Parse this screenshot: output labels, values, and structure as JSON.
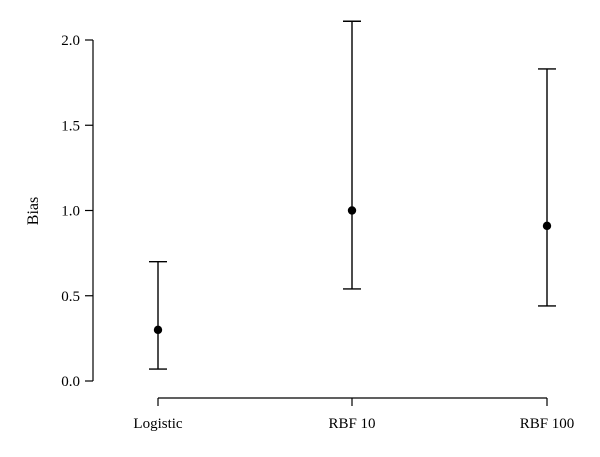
{
  "chart_data": {
    "type": "scatter",
    "title": "",
    "xlabel": "",
    "ylabel": "Bias",
    "categories": [
      "Logistic",
      "RBF 10",
      "RBF 100"
    ],
    "series": [
      {
        "values": [
          0.3,
          1.0,
          0.91
        ],
        "error_low": [
          0.07,
          0.54,
          0.44
        ],
        "error_high": [
          0.7,
          2.11,
          1.83
        ]
      }
    ],
    "ylim": [
      0.0,
      2.1
    ],
    "yticks": [
      0.0,
      0.5,
      1.0,
      1.5,
      2.0
    ],
    "ytick_labels": [
      "0.0",
      "0.5",
      "1.0",
      "1.5",
      "2.0"
    ],
    "grid": false,
    "legend": "none"
  }
}
